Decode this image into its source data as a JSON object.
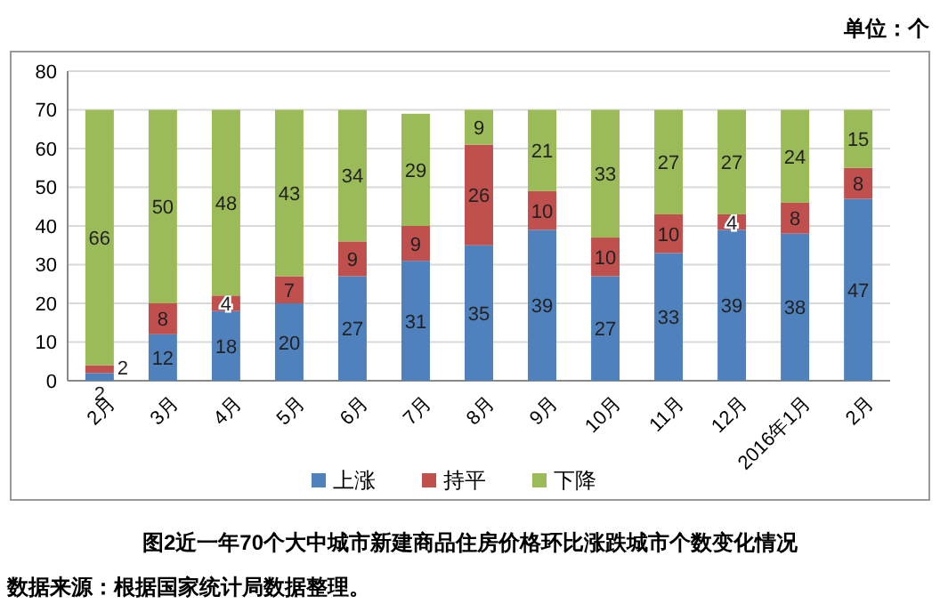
{
  "chart_data": {
    "type": "bar",
    "stacked": true,
    "title": "图2近一年70个大中城市新建商品住房价格环比涨跌城市个数变化情况",
    "annotations": [
      "单位：个",
      "数据来源：根据国家统计局数据整理。"
    ],
    "categories": [
      "2月",
      "3月",
      "4月",
      "5月",
      "6月",
      "7月",
      "8月",
      "9月",
      "10月",
      "11月",
      "12月",
      "2016年1月",
      "2月"
    ],
    "series": [
      {
        "name": "上涨",
        "color": "#4f81bd",
        "values": [
          2,
          12,
          18,
          20,
          27,
          31,
          35,
          39,
          27,
          33,
          39,
          38,
          47
        ]
      },
      {
        "name": "持平",
        "color": "#c0504d",
        "values": [
          2,
          8,
          4,
          7,
          9,
          9,
          26,
          10,
          10,
          10,
          4,
          8,
          8
        ]
      },
      {
        "name": "下降",
        "color": "#9bbb59",
        "values": [
          66,
          50,
          48,
          43,
          34,
          29,
          9,
          21,
          33,
          27,
          27,
          24,
          15
        ]
      }
    ],
    "ylim": [
      0,
      80
    ],
    "yticks": [
      0,
      10,
      20,
      30,
      40,
      50,
      60,
      70,
      80
    ],
    "grid": "y",
    "legend": "bottom",
    "data_labels": true
  }
}
